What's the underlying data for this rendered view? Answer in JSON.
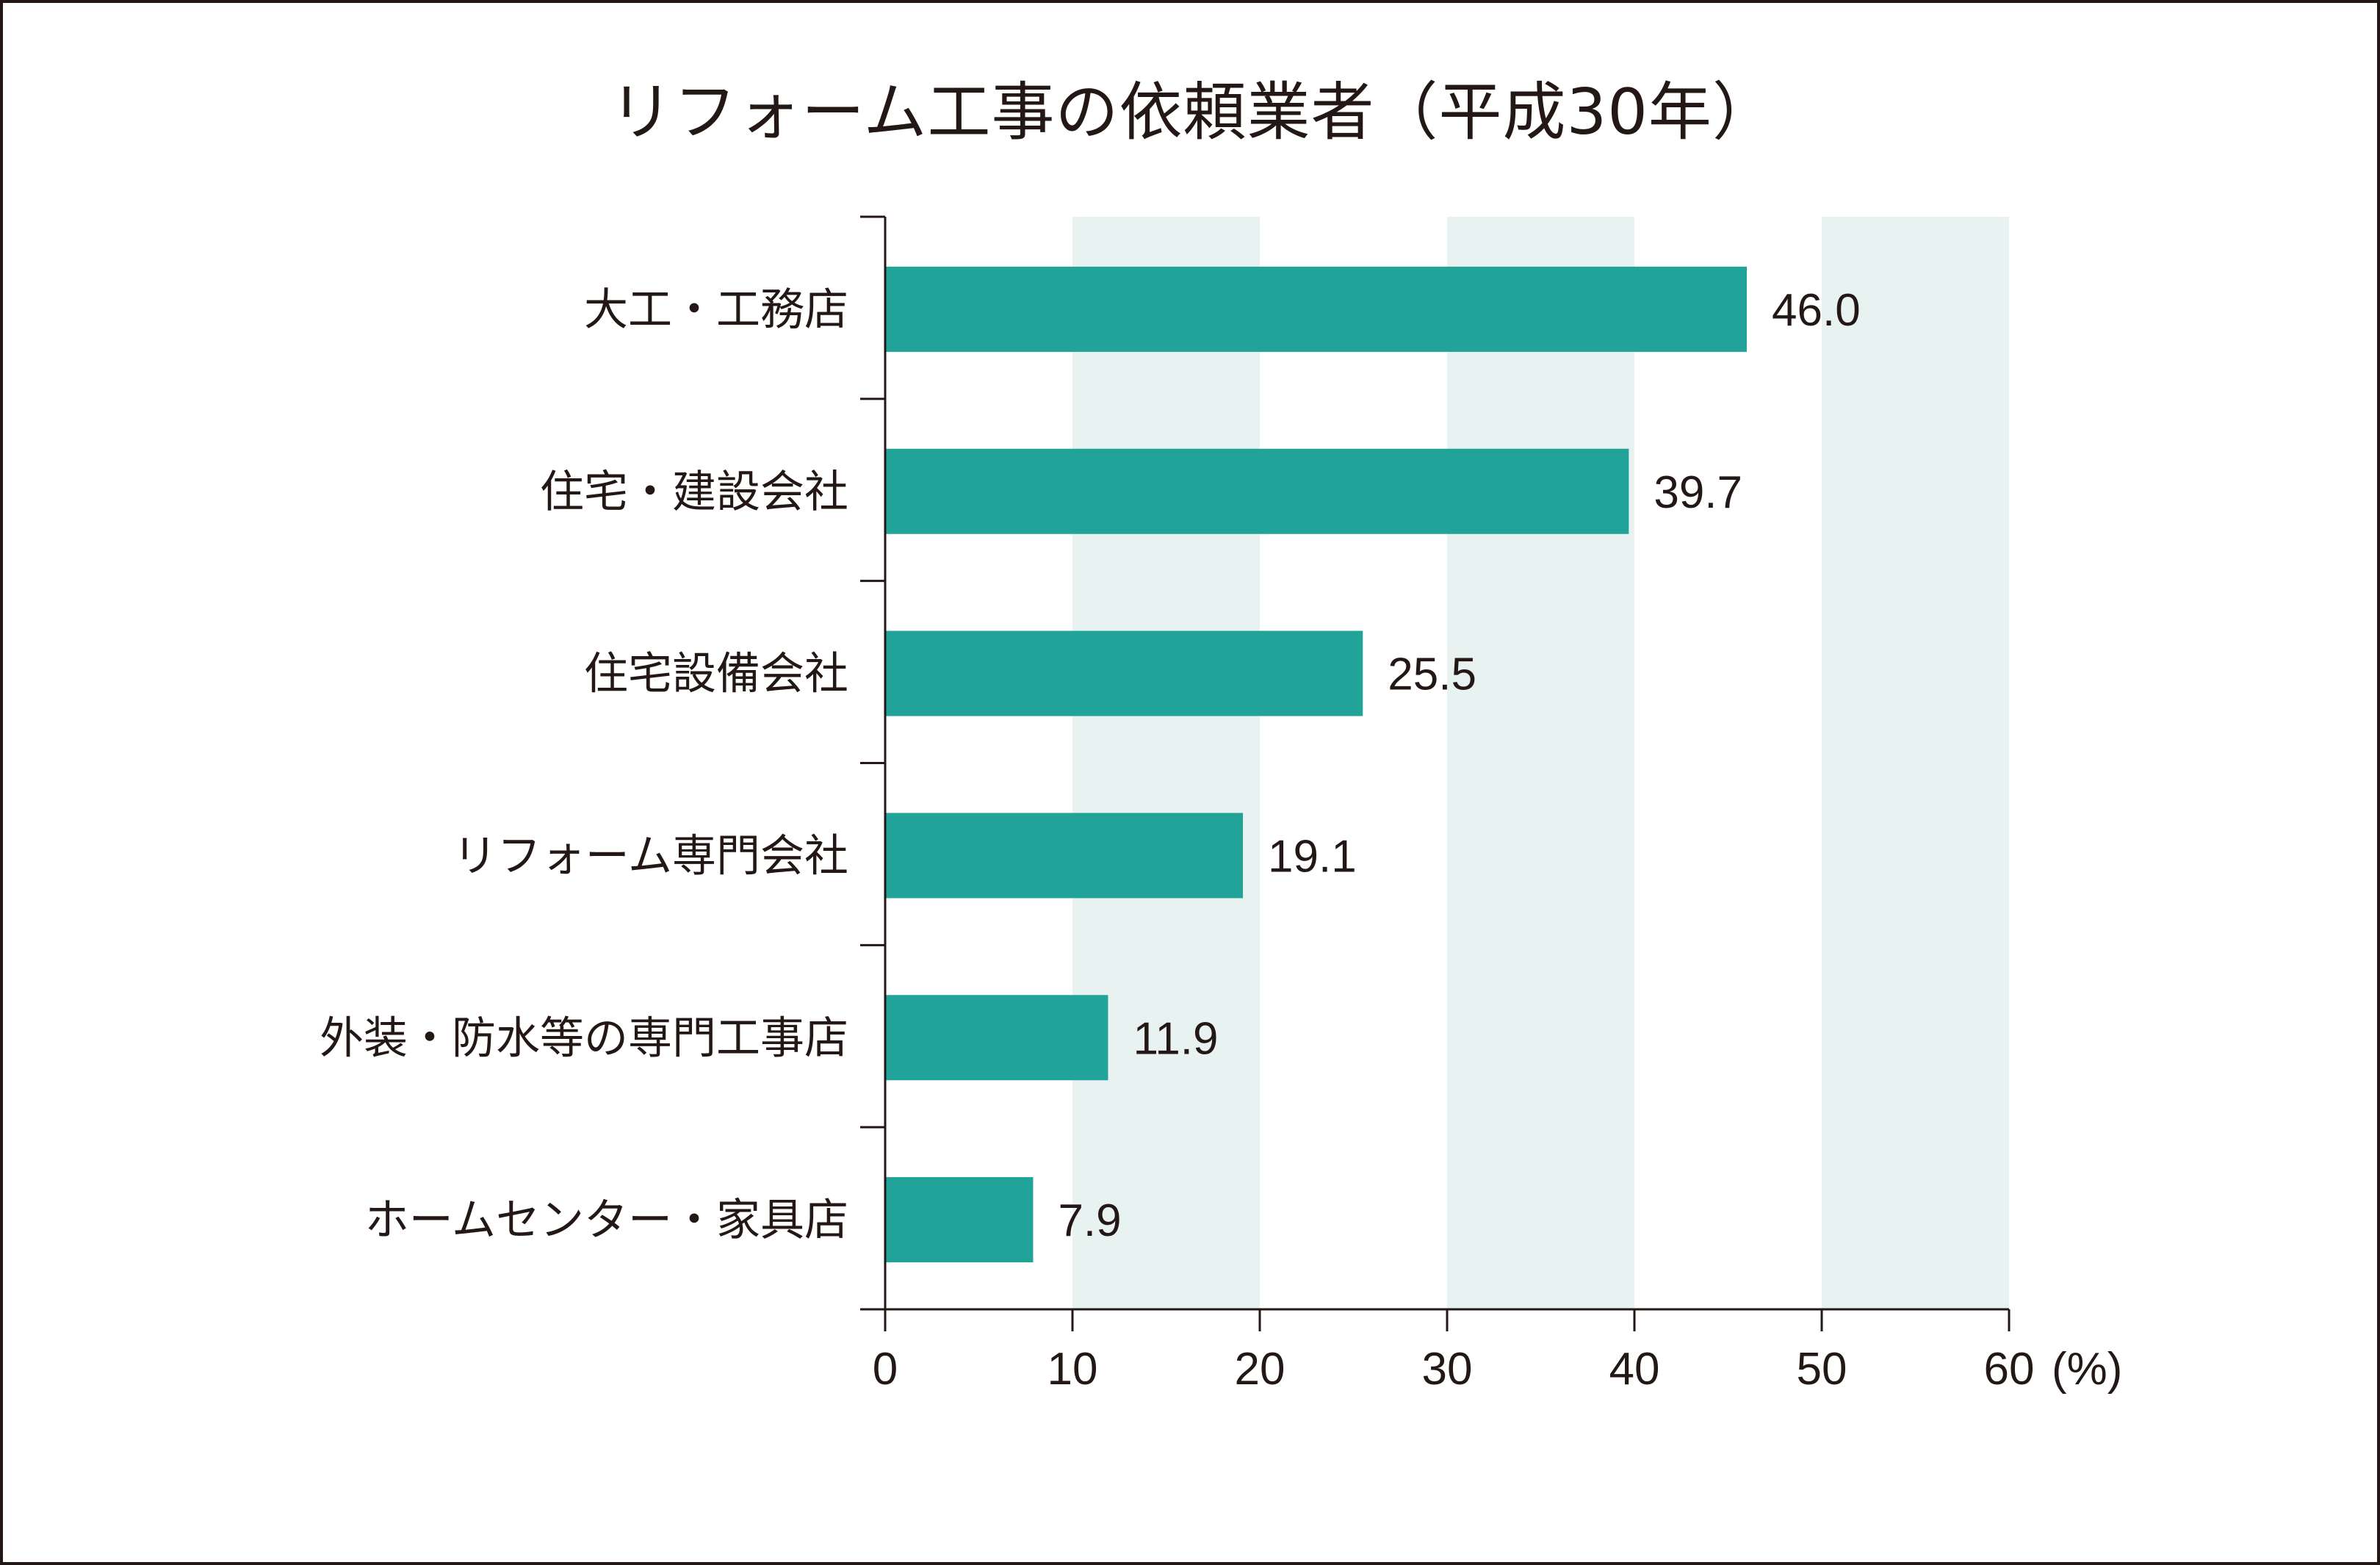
{
  "chart_data": {
    "type": "bar",
    "orientation": "horizontal",
    "title": "リフォーム工事の依頼業者（平成30年）",
    "categories": [
      "大工・工務店",
      "住宅・建設会社",
      "住宅設備会社",
      "リフォーム専門会社",
      "外装・防水等の専門工事店",
      "ホームセンター・家具店"
    ],
    "values": [
      46.0,
      39.7,
      25.5,
      19.1,
      11.9,
      7.9
    ],
    "value_labels": [
      "46.0",
      "39.7",
      "25.5",
      "19.1",
      "11.9",
      "7.9"
    ],
    "x_ticks": [
      "0",
      "10",
      "20",
      "30",
      "40",
      "50",
      "60"
    ],
    "x_unit": "(%)",
    "xlim": [
      0,
      60
    ],
    "bar_color": "#22a39a",
    "band_color": "#e8f3f1",
    "axis_color": "#231815",
    "grid": false
  }
}
